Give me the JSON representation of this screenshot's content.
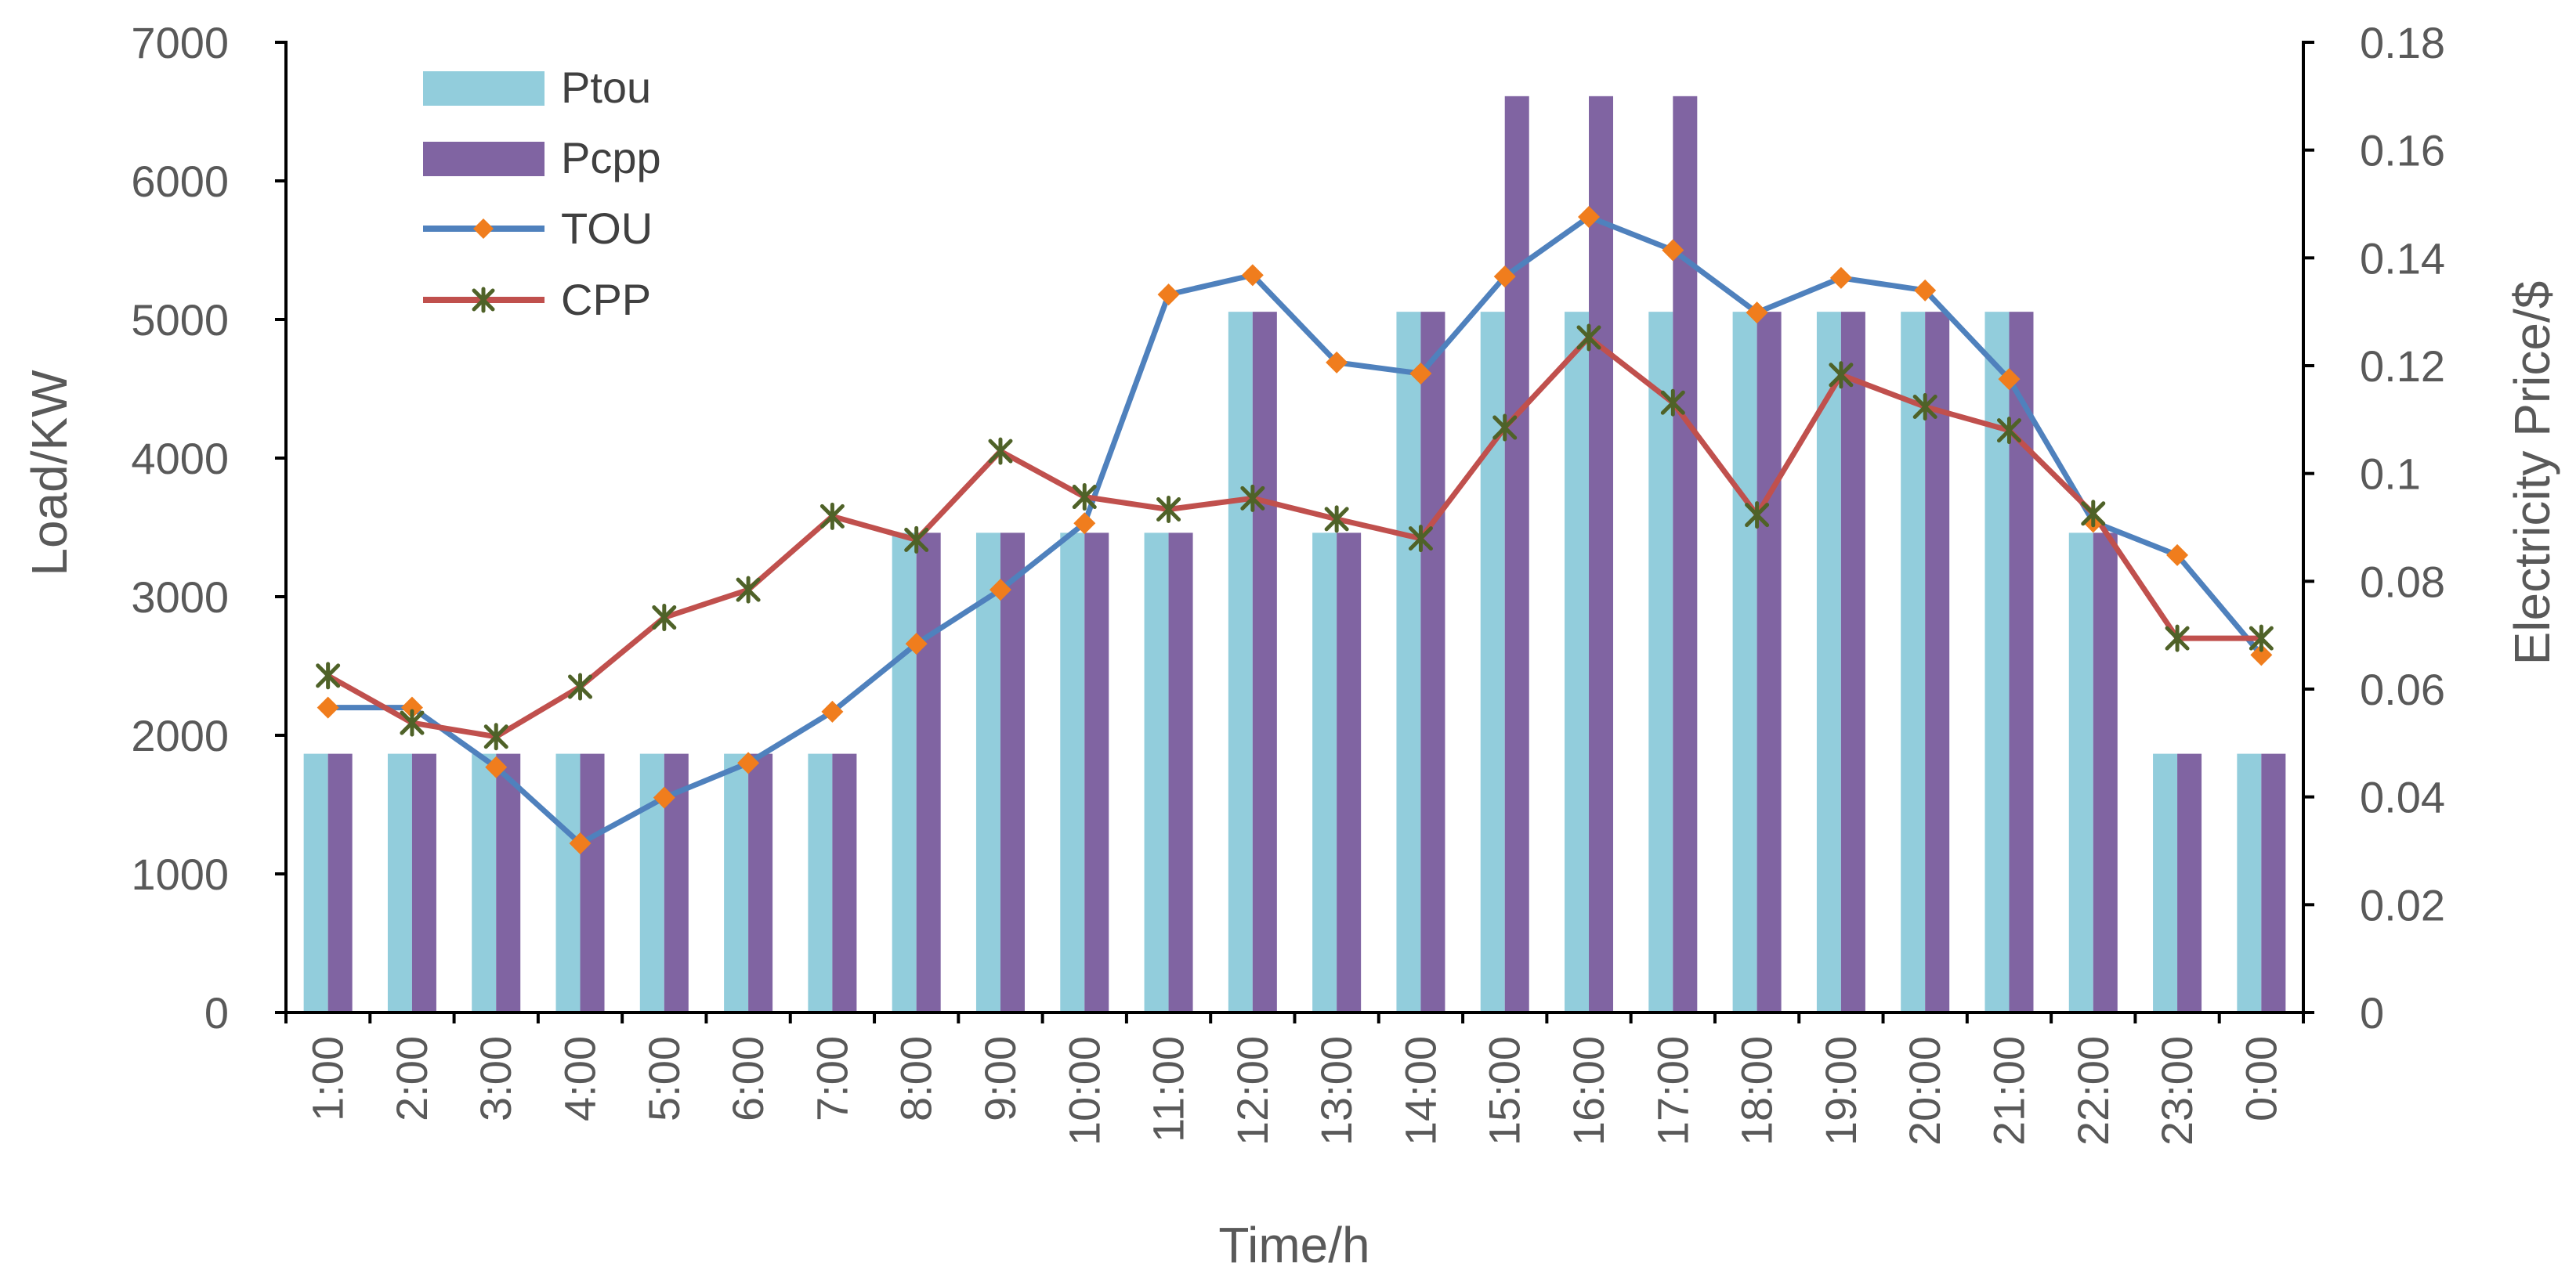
{
  "chart_data": {
    "type": "bar+line",
    "title": "",
    "xlabel": "Time/h",
    "ylabel_left": "Load/KW",
    "ylabel_right": "Electricity Price/$",
    "categories": [
      "1:00",
      "2:00",
      "3:00",
      "4:00",
      "5:00",
      "6:00",
      "7:00",
      "8:00",
      "9:00",
      "10:00",
      "11:00",
      "12:00",
      "13:00",
      "14:00",
      "15:00",
      "16:00",
      "17:00",
      "18:00",
      "19:00",
      "20:00",
      "21:00",
      "22:00",
      "23:00",
      "0:00"
    ],
    "ylim_left": [
      0,
      7000
    ],
    "ylim_right": [
      0,
      0.18
    ],
    "yticks_left": [
      "0",
      "1000",
      "2000",
      "3000",
      "4000",
      "5000",
      "6000",
      "7000"
    ],
    "yticks_right": [
      "0",
      "0.02",
      "0.04",
      "0.06",
      "0.08",
      "0.1",
      "0.12",
      "0.14",
      "0.16",
      "0.18"
    ],
    "legend_position": "top-left",
    "bar_series": [
      {
        "name": "Ptou",
        "color": "#92cddc",
        "axis": "right",
        "values": [
          0.048,
          0.048,
          0.048,
          0.048,
          0.048,
          0.048,
          0.048,
          0.089,
          0.089,
          0.089,
          0.089,
          0.13,
          0.089,
          0.13,
          0.13,
          0.13,
          0.13,
          0.13,
          0.13,
          0.13,
          0.13,
          0.089,
          0.048,
          0.048
        ]
      },
      {
        "name": "Pcpp",
        "color": "#8064a2",
        "axis": "right",
        "values": [
          0.048,
          0.048,
          0.048,
          0.048,
          0.048,
          0.048,
          0.048,
          0.089,
          0.089,
          0.089,
          0.089,
          0.13,
          0.089,
          0.13,
          0.17,
          0.17,
          0.17,
          0.13,
          0.13,
          0.13,
          0.13,
          0.089,
          0.048,
          0.048
        ]
      }
    ],
    "line_series": [
      {
        "name": "TOU",
        "color": "#4f81bd",
        "marker": "diamond",
        "marker_color": "#f07d1d",
        "axis": "left",
        "values": [
          2200,
          2200,
          1770,
          1220,
          1550,
          1800,
          2170,
          2660,
          3050,
          3530,
          5180,
          5320,
          4690,
          4610,
          5310,
          5740,
          5500,
          5050,
          5300,
          5210,
          4570,
          3540,
          3300,
          2580
        ]
      },
      {
        "name": "CPP",
        "color": "#c0504d",
        "marker": "star",
        "marker_color": "#4f6228",
        "axis": "left",
        "values": [
          2430,
          2090,
          1990,
          2350,
          2850,
          3050,
          3580,
          3410,
          4050,
          3720,
          3630,
          3710,
          3560,
          3420,
          4220,
          4870,
          4400,
          3590,
          4600,
          4370,
          4200,
          3600,
          2700,
          2700
        ]
      }
    ]
  }
}
